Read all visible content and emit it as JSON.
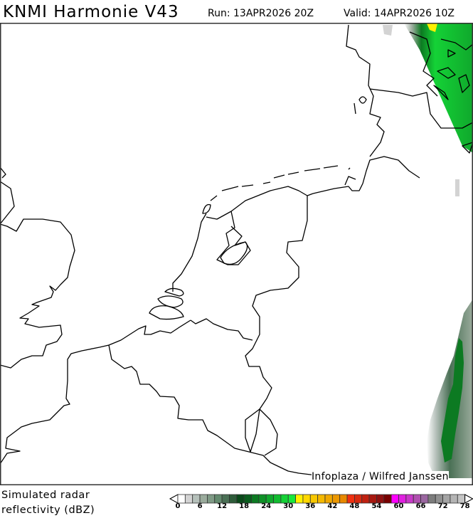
{
  "header": {
    "title": "KNMI Harmonie V43",
    "run": "Run: 13APR2026 20Z",
    "valid": "Valid: 14APR2026 10Z"
  },
  "map": {
    "region": "Netherlands / Belgium / North Sea",
    "credit": "Infoplaza / Wilfred Janssen",
    "precip_color": "#12bc30"
  },
  "legend": {
    "label_line1": "Simulated radar",
    "label_line2": "reflectivity (dBZ)",
    "ticks": [
      "0",
      "6",
      "12",
      "18",
      "24",
      "30",
      "36",
      "42",
      "48",
      "54",
      "60",
      "66",
      "72",
      "78"
    ],
    "step_dbz": 2,
    "colors": [
      "#ffffff",
      "#d3d3d3",
      "#b5c0ba",
      "#9aab9c",
      "#7f9a85",
      "#638a6e",
      "#4a7055",
      "#2e5c3a",
      "#0a4a1a",
      "#0a5e1e",
      "#0c7a22",
      "#0e9126",
      "#10a82c",
      "#12bc30",
      "#14d236",
      "#18e83c",
      "#fff000",
      "#ffd800",
      "#f8c800",
      "#f4b800",
      "#f0a800",
      "#ec9800",
      "#e88800",
      "#f03010",
      "#d82a10",
      "#c02010",
      "#a81810",
      "#901010",
      "#780000",
      "#ff00ff",
      "#e020e0",
      "#c838c8",
      "#b050b0",
      "#9a66a0",
      "#7c7c7c",
      "#909090",
      "#a4a4a4",
      "#b4b4b4",
      "#c4c4c4"
    ]
  }
}
